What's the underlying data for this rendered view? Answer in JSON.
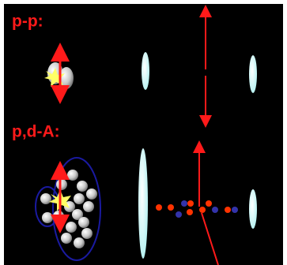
{
  "panels": [
    {
      "label": "p-p:"
    },
    {
      "label": "p,d-A:"
    }
  ]
}
